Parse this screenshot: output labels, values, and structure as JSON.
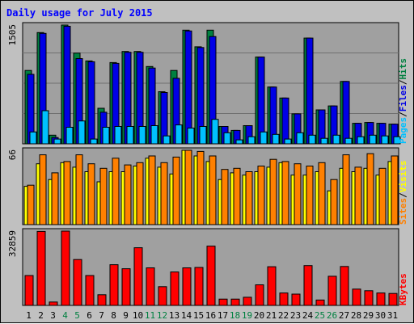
{
  "title": "Daily usage for July 2015",
  "colors": {
    "background": "#c0c0c0",
    "plot_bg": "#a0a0a0",
    "hits": "#008040",
    "files": "#0000e6",
    "pages": "#00c0ff",
    "visits": "#ffff00",
    "sites": "#ff8000",
    "kbytes": "#ff0000",
    "title": "#0000ff",
    "weekend_label": "#008040"
  },
  "legends": {
    "top": [
      {
        "key": "pages",
        "label": "Pages",
        "color": "#00c0ff"
      },
      {
        "key": "sep1",
        "label": "/",
        "color": "#000000"
      },
      {
        "key": "files",
        "label": "Files",
        "color": "#0000e6"
      },
      {
        "key": "sep2",
        "label": "/",
        "color": "#000000"
      },
      {
        "key": "hits",
        "label": "Hits",
        "color": "#008040"
      }
    ],
    "middle": [
      {
        "key": "sites",
        "label": "Sites",
        "color": "#ff8000"
      },
      {
        "key": "sep3",
        "label": "/",
        "color": "#000000"
      },
      {
        "key": "visits",
        "label": "Visits",
        "color": "#ffff00"
      }
    ],
    "bottom": [
      {
        "key": "kbytes",
        "label": "KBytes",
        "color": "#ff0000"
      }
    ]
  },
  "chart_data": [
    {
      "type": "bar",
      "panel": "top",
      "ymax_label": "1505",
      "ylim": [
        0,
        1505
      ],
      "categories": [
        "1",
        "2",
        "3",
        "4",
        "5",
        "6",
        "7",
        "8",
        "9",
        "10",
        "11",
        "12",
        "13",
        "14",
        "15",
        "16",
        "17",
        "18",
        "19",
        "20",
        "21",
        "22",
        "23",
        "24",
        "25",
        "26",
        "27",
        "28",
        "29",
        "30",
        "31"
      ],
      "weekend_days": [
        "4",
        "5",
        "11",
        "12",
        "18",
        "19",
        "25",
        "26"
      ],
      "series": [
        {
          "name": "Hits",
          "key": "hits",
          "values": [
            930,
            1410,
            110,
            1505,
            1150,
            1050,
            450,
            1030,
            1170,
            1170,
            980,
            660,
            930,
            1440,
            1230,
            1440,
            220,
            170,
            230,
            1100,
            720,
            580,
            380,
            1340,
            430,
            480,
            790,
            260,
            270,
            260,
            250
          ]
        },
        {
          "name": "Files",
          "key": "files",
          "values": [
            880,
            1400,
            80,
            1490,
            1080,
            1040,
            400,
            1020,
            1160,
            1160,
            960,
            650,
            830,
            1430,
            1220,
            1360,
            220,
            170,
            230,
            1100,
            720,
            580,
            380,
            1340,
            430,
            480,
            790,
            260,
            270,
            260,
            250
          ]
        },
        {
          "name": "Pages",
          "key": "pages",
          "values": [
            150,
            420,
            60,
            210,
            290,
            60,
            210,
            220,
            220,
            220,
            230,
            100,
            240,
            200,
            220,
            310,
            140,
            50,
            90,
            150,
            120,
            60,
            140,
            110,
            70,
            110,
            70,
            90,
            110,
            100,
            90
          ]
        }
      ]
    },
    {
      "type": "bar",
      "panel": "middle",
      "ymax_label": "66",
      "ylim": [
        0,
        66
      ],
      "categories": [
        "1",
        "2",
        "3",
        "4",
        "5",
        "6",
        "7",
        "8",
        "9",
        "10",
        "11",
        "12",
        "13",
        "14",
        "15",
        "16",
        "17",
        "18",
        "19",
        "20",
        "21",
        "22",
        "23",
        "24",
        "25",
        "26",
        "27",
        "28",
        "29",
        "30",
        "31"
      ],
      "series": [
        {
          "name": "Sites",
          "key": "sites",
          "values": [
            35,
            62,
            46,
            56,
            62,
            54,
            50,
            59,
            53,
            55,
            61,
            55,
            60,
            66,
            65,
            61,
            49,
            50,
            47,
            52,
            58,
            56,
            54,
            52,
            55,
            40,
            62,
            51,
            63,
            50,
            61
          ]
        },
        {
          "name": "Visits",
          "key": "visits",
          "values": [
            34,
            54,
            40,
            55,
            51,
            47,
            38,
            47,
            47,
            52,
            59,
            51,
            45,
            66,
            61,
            56,
            40,
            46,
            44,
            47,
            51,
            55,
            44,
            44,
            47,
            30,
            50,
            47,
            50,
            44,
            56
          ]
        }
      ]
    },
    {
      "type": "bar",
      "panel": "bottom",
      "ymax_label": "32859",
      "ylim": [
        0,
        32859
      ],
      "categories": [
        "1",
        "2",
        "3",
        "4",
        "5",
        "6",
        "7",
        "8",
        "9",
        "10",
        "11",
        "12",
        "13",
        "14",
        "15",
        "16",
        "17",
        "18",
        "19",
        "20",
        "21",
        "22",
        "23",
        "24",
        "25",
        "26",
        "27",
        "28",
        "29",
        "30",
        "31"
      ],
      "series": [
        {
          "name": "KBytes",
          "key": "kbytes",
          "values": [
            13200,
            32700,
            1500,
            32859,
            20300,
            13200,
            4700,
            18000,
            16200,
            25500,
            16600,
            8300,
            14800,
            16600,
            16800,
            26200,
            2800,
            2800,
            3600,
            9100,
            17100,
            5500,
            5000,
            17600,
            2400,
            12900,
            17200,
            7200,
            6500,
            5500,
            5300
          ]
        }
      ]
    }
  ]
}
